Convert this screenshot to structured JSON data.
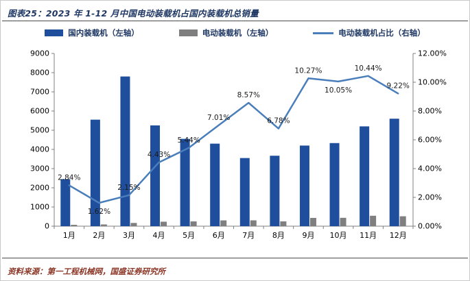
{
  "header": {
    "title": "图表25：2023 年 1-12 月中国电动装载机占国内装载机总销量"
  },
  "legend": [
    {
      "label": "国内装载机（左轴）",
      "marker": "bar",
      "color": "#1F4E9D"
    },
    {
      "label": "电动装载机（左轴）",
      "marker": "bar",
      "color": "#7F7F7F"
    },
    {
      "label": "电动装载机占比（右轴）",
      "marker": "line",
      "color": "#4A7EBB"
    }
  ],
  "chart_data": {
    "type": "bar",
    "subtype": "combo-bar-line",
    "title": "2023 年 1-12 月中国电动装载机占国内装载机总销量",
    "categories": [
      "1月",
      "2月",
      "3月",
      "4月",
      "5月",
      "6月",
      "7月",
      "8月",
      "9月",
      "10月",
      "11月",
      "12月"
    ],
    "series": [
      {
        "name": "国内装载机（左轴）",
        "type": "bar",
        "axis": "left",
        "color": "#1F4E9D",
        "values": [
          2450,
          5550,
          7800,
          5250,
          4550,
          4300,
          3550,
          3670,
          4200,
          4330,
          5200,
          5600
        ]
      },
      {
        "name": "电动装载机（左轴）",
        "type": "bar",
        "axis": "left",
        "color": "#7F7F7F",
        "values": [
          70,
          90,
          168,
          233,
          248,
          301,
          304,
          249,
          431,
          435,
          543,
          516
        ]
      },
      {
        "name": "电动装载机占比（右轴）",
        "type": "line",
        "axis": "right",
        "color": "#4A7EBB",
        "values": [
          2.84,
          1.62,
          2.15,
          4.43,
          5.44,
          7.01,
          8.57,
          6.78,
          10.27,
          10.05,
          10.44,
          9.22
        ],
        "point_labels": [
          "2.84%",
          "1.62%",
          "2.15%",
          "4.43%",
          "5.44%",
          "7.01%",
          "8.57%",
          "6.78%",
          "10.27%",
          "10.05%",
          "10.44%",
          "9.22%"
        ],
        "label_positions": [
          "above",
          "below",
          "above",
          "above",
          "above",
          "above",
          "above",
          "above",
          "above",
          "below",
          "above",
          "above"
        ]
      }
    ],
    "left_axis": {
      "min": 0,
      "max": 9000,
      "step": 1000,
      "ticks": [
        "0",
        "1000",
        "2000",
        "3000",
        "4000",
        "5000",
        "6000",
        "7000",
        "8000",
        "9000"
      ]
    },
    "right_axis": {
      "min": 0,
      "max": 12,
      "step": 2,
      "ticks": [
        "0.00%",
        "2.00%",
        "4.00%",
        "6.00%",
        "8.00%",
        "10.00%",
        "12.00%"
      ]
    },
    "grid": false,
    "legend_position": "top"
  },
  "footer": {
    "source": "资料来源：第一工程机械网，国盛证券研究所"
  }
}
